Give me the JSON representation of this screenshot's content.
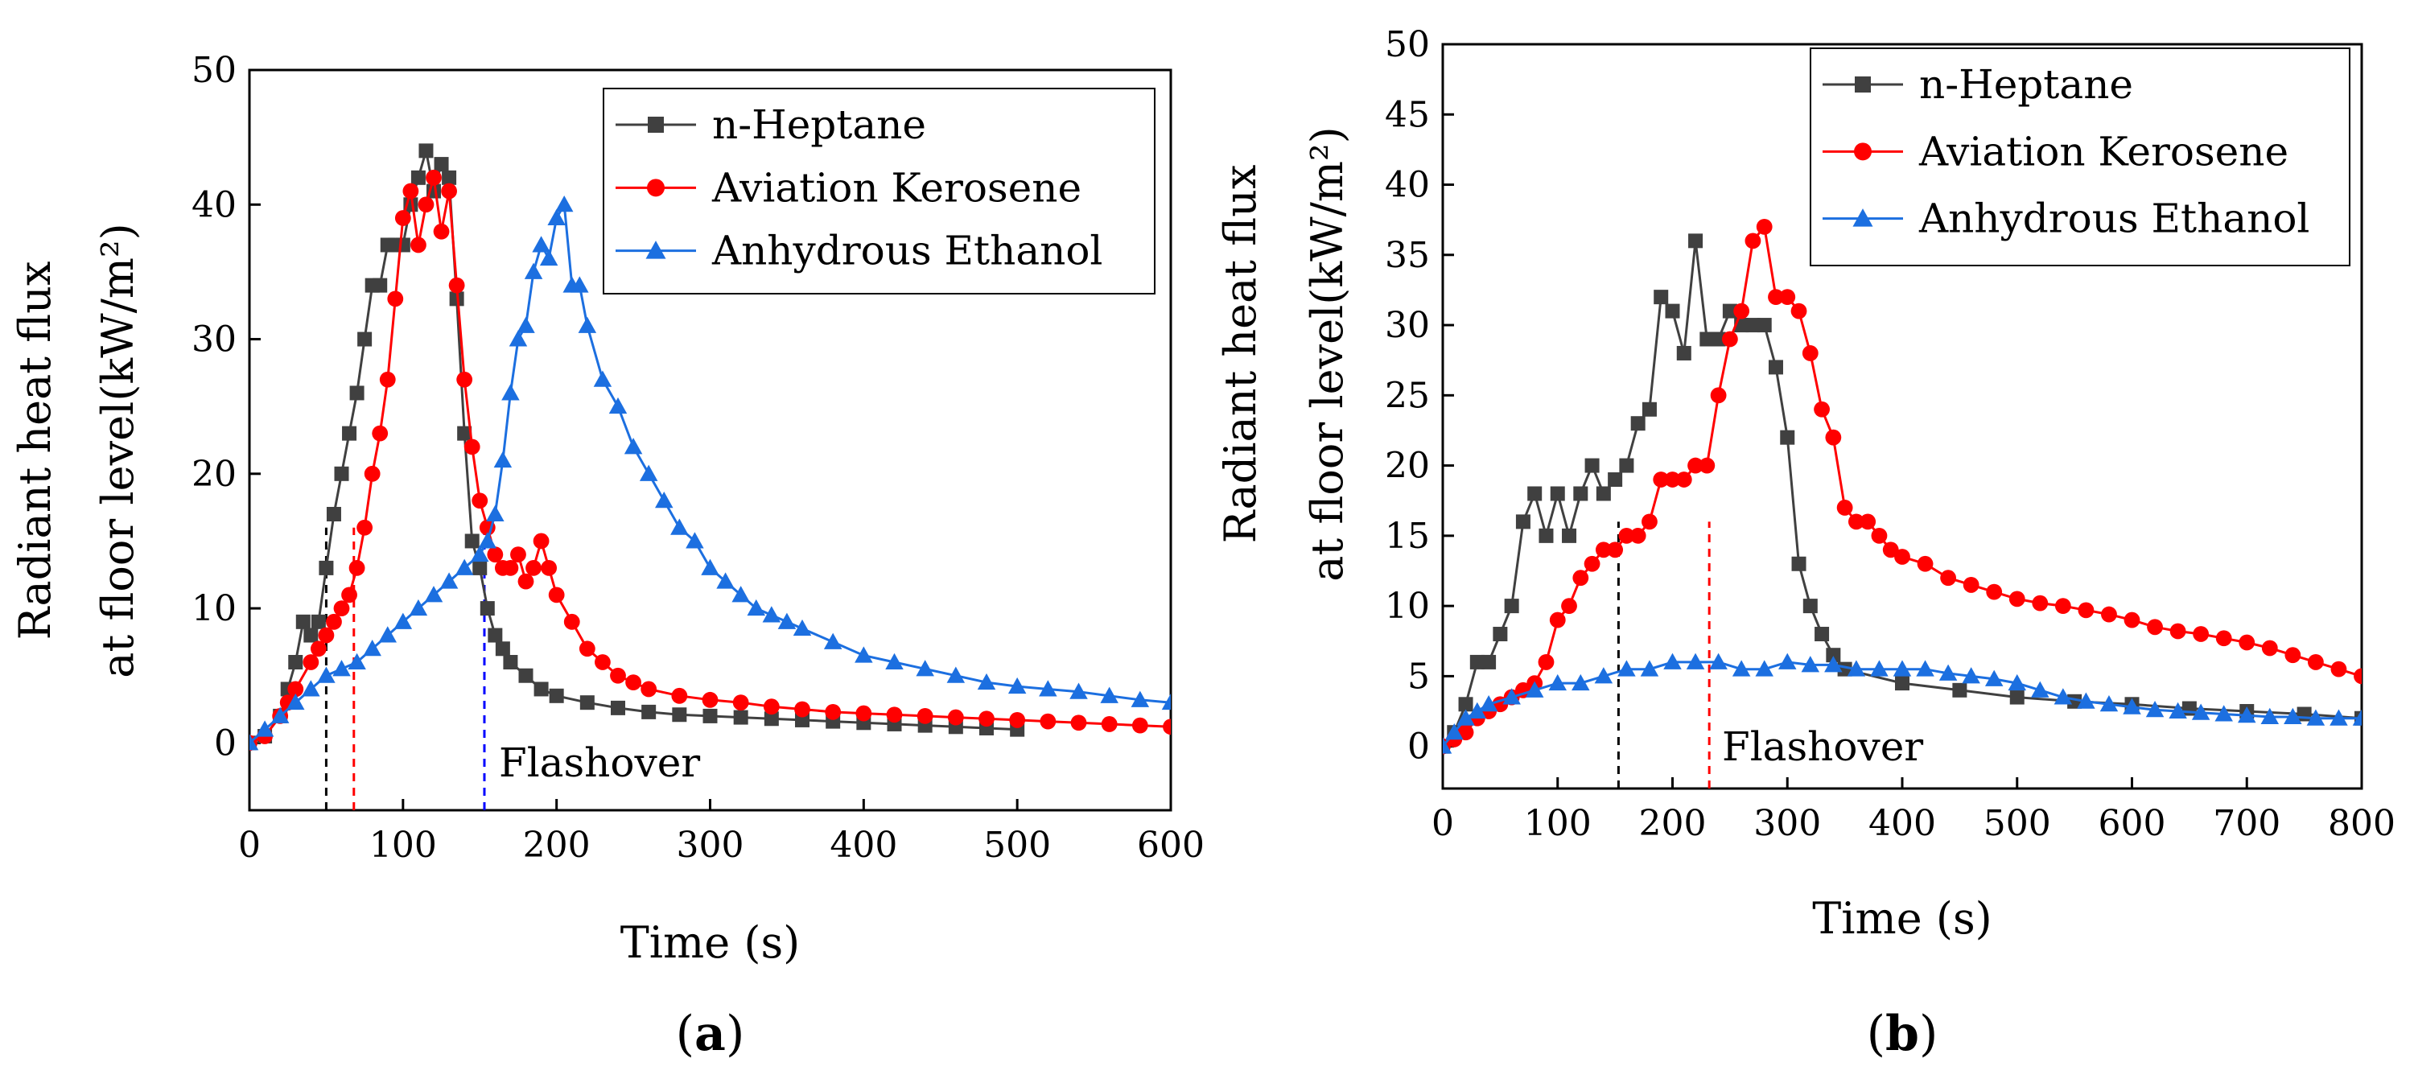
{
  "chart_data": [
    {
      "type": "line",
      "panel_label": "(a)",
      "panel_letter": "a",
      "xlabel": "Time (s)",
      "ylabel_line1": "Radiant heat flux",
      "ylabel_line2": "at floor level(kW/m²)",
      "xlim": [
        0,
        600
      ],
      "ylim": [
        -5,
        50
      ],
      "xticks": [
        0,
        100,
        200,
        300,
        400,
        500,
        600
      ],
      "yticks": [
        0,
        10,
        20,
        30,
        40,
        50
      ],
      "legend_position": "top-right",
      "annotation": "Flashover",
      "flashover_lines": [
        {
          "x": 50,
          "color": "#000000"
        },
        {
          "x": 68,
          "color": "#ff0000"
        },
        {
          "x": 153,
          "color": "#0000ff"
        }
      ],
      "series": [
        {
          "name": "n-Heptane",
          "color": "#404040",
          "marker": "square",
          "x": [
            0,
            10,
            20,
            25,
            30,
            35,
            40,
            45,
            50,
            55,
            60,
            65,
            70,
            75,
            80,
            85,
            90,
            95,
            100,
            105,
            110,
            115,
            120,
            125,
            130,
            135,
            140,
            145,
            150,
            155,
            160,
            165,
            170,
            180,
            190,
            200,
            220,
            240,
            260,
            280,
            300,
            320,
            340,
            360,
            380,
            400,
            420,
            440,
            460,
            480,
            500
          ],
          "y": [
            0,
            0.5,
            2,
            4,
            6,
            9,
            8,
            9,
            13,
            17,
            20,
            23,
            26,
            30,
            34,
            34,
            37,
            37,
            37,
            40,
            42,
            44,
            41,
            43,
            42,
            33,
            23,
            15,
            13,
            10,
            8,
            7,
            6,
            5,
            4,
            3.5,
            3,
            2.6,
            2.3,
            2.1,
            2,
            1.9,
            1.8,
            1.7,
            1.6,
            1.5,
            1.4,
            1.3,
            1.2,
            1.1,
            1
          ]
        },
        {
          "name": "Aviation Kerosene",
          "color": "#ff0000",
          "marker": "circle",
          "x": [
            0,
            10,
            20,
            25,
            30,
            40,
            45,
            50,
            55,
            60,
            65,
            70,
            75,
            80,
            85,
            90,
            95,
            100,
            105,
            110,
            115,
            120,
            125,
            130,
            135,
            140,
            145,
            150,
            155,
            160,
            165,
            170,
            175,
            180,
            185,
            190,
            195,
            200,
            210,
            220,
            230,
            240,
            250,
            260,
            280,
            300,
            320,
            340,
            360,
            380,
            400,
            420,
            440,
            460,
            480,
            500,
            520,
            540,
            560,
            580,
            600
          ],
          "y": [
            0,
            0.5,
            2,
            3,
            4,
            6,
            7,
            8,
            9,
            10,
            11,
            13,
            16,
            20,
            23,
            27,
            33,
            39,
            41,
            37,
            40,
            42,
            38,
            41,
            34,
            27,
            22,
            18,
            16,
            14,
            13,
            13,
            14,
            12,
            13,
            15,
            13,
            11,
            9,
            7,
            6,
            5,
            4.5,
            4,
            3.5,
            3.2,
            3,
            2.7,
            2.5,
            2.3,
            2.2,
            2.1,
            2,
            1.9,
            1.8,
            1.7,
            1.6,
            1.5,
            1.4,
            1.3,
            1.2
          ]
        },
        {
          "name": "Anhydrous Ethanol",
          "color": "#1c6fe0",
          "marker": "triangle",
          "x": [
            0,
            10,
            20,
            30,
            40,
            50,
            60,
            70,
            80,
            90,
            100,
            110,
            120,
            130,
            140,
            150,
            155,
            160,
            165,
            170,
            175,
            180,
            185,
            190,
            195,
            200,
            205,
            210,
            215,
            220,
            230,
            240,
            250,
            260,
            270,
            280,
            290,
            300,
            310,
            320,
            330,
            340,
            350,
            360,
            380,
            400,
            420,
            440,
            460,
            480,
            500,
            520,
            540,
            560,
            580,
            600
          ],
          "y": [
            0,
            1,
            2,
            3,
            4,
            5,
            5.5,
            6,
            7,
            8,
            9,
            10,
            11,
            12,
            13,
            14,
            15,
            17,
            21,
            26,
            30,
            31,
            35,
            37,
            36,
            39,
            40,
            34,
            34,
            31,
            27,
            25,
            22,
            20,
            18,
            16,
            15,
            13,
            12,
            11,
            10,
            9.5,
            9,
            8.5,
            7.5,
            6.5,
            6,
            5.5,
            5,
            4.5,
            4.2,
            4,
            3.8,
            3.5,
            3.2,
            3
          ]
        }
      ]
    },
    {
      "type": "line",
      "panel_label": "(b)",
      "panel_letter": "b",
      "xlabel": "Time (s)",
      "ylabel_line1": "Radiant heat flux",
      "ylabel_line2": "at floor level(kW/m²)",
      "xlim": [
        0,
        800
      ],
      "ylim": [
        -3,
        50
      ],
      "xticks": [
        0,
        100,
        200,
        300,
        400,
        500,
        600,
        700,
        800
      ],
      "yticks": [
        0,
        5,
        10,
        15,
        20,
        25,
        30,
        35,
        40,
        45,
        50
      ],
      "legend_position": "top-right",
      "annotation": "Flashover",
      "flashover_lines": [
        {
          "x": 153,
          "color": "#000000"
        },
        {
          "x": 232,
          "color": "#ff0000"
        }
      ],
      "series": [
        {
          "name": "n-Heptane",
          "color": "#404040",
          "marker": "square",
          "x": [
            0,
            10,
            20,
            30,
            40,
            50,
            60,
            70,
            80,
            90,
            100,
            110,
            120,
            130,
            140,
            150,
            160,
            170,
            180,
            190,
            200,
            210,
            220,
            230,
            240,
            250,
            260,
            270,
            280,
            290,
            300,
            310,
            320,
            330,
            340,
            350,
            400,
            450,
            500,
            550,
            600,
            650,
            700,
            750,
            800
          ],
          "y": [
            0,
            1,
            3,
            6,
            6,
            8,
            10,
            16,
            18,
            15,
            18,
            15,
            18,
            20,
            18,
            19,
            20,
            23,
            24,
            32,
            31,
            28,
            36,
            29,
            29,
            31,
            30,
            30,
            30,
            27,
            22,
            13,
            10,
            8,
            6.5,
            5.5,
            4.5,
            4,
            3.5,
            3.2,
            3,
            2.7,
            2.5,
            2.3,
            2
          ]
        },
        {
          "name": "Aviation Kerosene",
          "color": "#ff0000",
          "marker": "circle",
          "x": [
            0,
            10,
            20,
            30,
            40,
            50,
            60,
            70,
            80,
            90,
            100,
            110,
            120,
            130,
            140,
            150,
            160,
            170,
            180,
            190,
            200,
            210,
            220,
            230,
            240,
            250,
            260,
            270,
            280,
            290,
            300,
            310,
            320,
            330,
            340,
            350,
            360,
            370,
            380,
            390,
            400,
            420,
            440,
            460,
            480,
            500,
            520,
            540,
            560,
            580,
            600,
            620,
            640,
            660,
            680,
            700,
            720,
            740,
            760,
            780,
            800
          ],
          "y": [
            0,
            0.5,
            1,
            2,
            2.5,
            3,
            3.5,
            4,
            4.5,
            6,
            9,
            10,
            12,
            13,
            14,
            14,
            15,
            15,
            16,
            19,
            19,
            19,
            20,
            20,
            25,
            29,
            31,
            36,
            37,
            32,
            32,
            31,
            28,
            24,
            22,
            17,
            16,
            16,
            15,
            14,
            13.5,
            13,
            12,
            11.5,
            11,
            10.5,
            10.2,
            10,
            9.7,
            9.4,
            9,
            8.5,
            8.2,
            8,
            7.7,
            7.4,
            7,
            6.5,
            6,
            5.5,
            5
          ]
        },
        {
          "name": "Anhydrous Ethanol",
          "color": "#1c6fe0",
          "marker": "triangle",
          "x": [
            0,
            10,
            20,
            30,
            40,
            60,
            80,
            100,
            120,
            140,
            160,
            180,
            200,
            220,
            240,
            260,
            280,
            300,
            320,
            340,
            360,
            380,
            400,
            420,
            440,
            460,
            480,
            500,
            520,
            540,
            560,
            580,
            600,
            620,
            640,
            660,
            680,
            700,
            720,
            740,
            760,
            780,
            800
          ],
          "y": [
            0,
            1,
            2,
            2.5,
            3,
            3.5,
            4,
            4.5,
            4.5,
            5,
            5.5,
            5.5,
            6,
            6,
            6,
            5.5,
            5.5,
            6,
            5.8,
            5.8,
            5.5,
            5.5,
            5.5,
            5.5,
            5.2,
            5,
            4.8,
            4.5,
            4,
            3.5,
            3.2,
            3,
            2.8,
            2.6,
            2.5,
            2.4,
            2.3,
            2.2,
            2.1,
            2.1,
            2,
            2,
            2
          ]
        }
      ]
    }
  ]
}
